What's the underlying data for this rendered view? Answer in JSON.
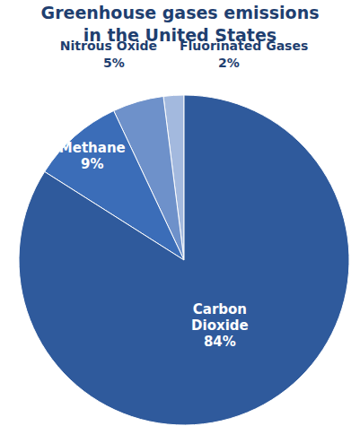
{
  "chart_data": {
    "type": "pie",
    "title": [
      "Greenhouse gases emissions",
      "in the United States"
    ],
    "categories": [
      "Fluorinated Gases",
      "Nitrous Oxide",
      "Methane",
      "Carbon Dioxide"
    ],
    "values": [
      2,
      5,
      9,
      84
    ],
    "value_labels": [
      "2%",
      "5%",
      "9%",
      "84%"
    ],
    "colors": [
      "#a3b9de",
      "#6e91ca",
      "#3b6db8",
      "#2f5a9c"
    ],
    "data_labels": true
  }
}
